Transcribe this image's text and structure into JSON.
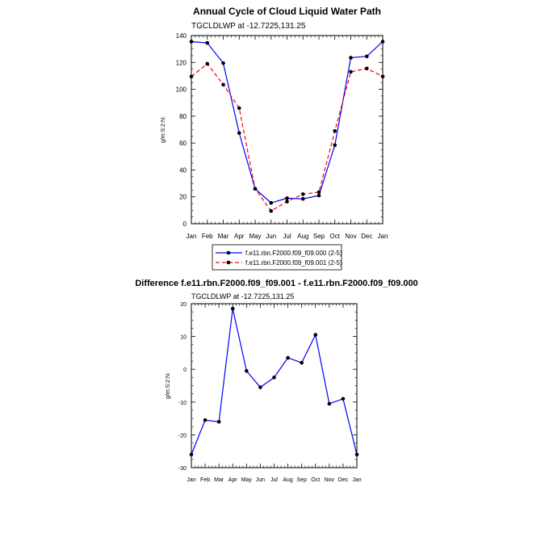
{
  "chart_data": [
    {
      "type": "line",
      "title": "Annual Cycle of Cloud Liquid Water Path",
      "subtitle": "TGCLDLWP at -12.7225,131.25",
      "xlabel": "",
      "ylabel": "g/m:S:2:N:",
      "categories": [
        "Jan",
        "Feb",
        "Mar",
        "Apr",
        "May",
        "Jun",
        "Jul",
        "Aug",
        "Sep",
        "Oct",
        "Nov",
        "Dec",
        "Jan"
      ],
      "yticks": [
        0,
        20,
        40,
        60,
        80,
        100,
        120,
        140
      ],
      "ylim": [
        0,
        140
      ],
      "series": [
        {
          "name": "f.e11.rbn.F2000.f09_f09.000 (2-5)",
          "color": "#0000ff",
          "dash": "solid",
          "values": [
            135.5,
            134.5,
            119.5,
            67.5,
            26,
            15.5,
            19,
            18.5,
            21,
            58.5,
            123.5,
            124.5,
            135.5
          ]
        },
        {
          "name": "f.e11.rbn.F2000.f09_f09.001 (2-5)",
          "color": "#ff0000",
          "dash": "dashed",
          "values": [
            109.5,
            119,
            103.5,
            86,
            26,
            9.5,
            16.5,
            22,
            23.5,
            69,
            113,
            115.5,
            109.5
          ]
        }
      ],
      "legend_position": "bottom-center"
    },
    {
      "type": "line",
      "title": "Difference f.e11.rbn.F2000.f09_f09.001 - f.e11.rbn.F2000.f09_f09.000",
      "subtitle": "TGCLDLWP at -12.7225,131.25",
      "xlabel": "",
      "ylabel": "g/m:S:2:N:",
      "categories": [
        "Jan",
        "Feb",
        "Mar",
        "Apr",
        "May",
        "Jun",
        "Jul",
        "Aug",
        "Sep",
        "Oct",
        "Nov",
        "Dec",
        "Jan"
      ],
      "yticks": [
        -30,
        -20,
        -10,
        0,
        10,
        20
      ],
      "ylim": [
        -30,
        20
      ],
      "series": [
        {
          "name": "difference",
          "color": "#0000ff",
          "dash": "solid",
          "values": [
            -26,
            -15.5,
            -16,
            18.5,
            -0.5,
            -5.5,
            -2.5,
            3.5,
            2,
            10.5,
            -10.5,
            -9,
            -26
          ]
        }
      ]
    }
  ]
}
